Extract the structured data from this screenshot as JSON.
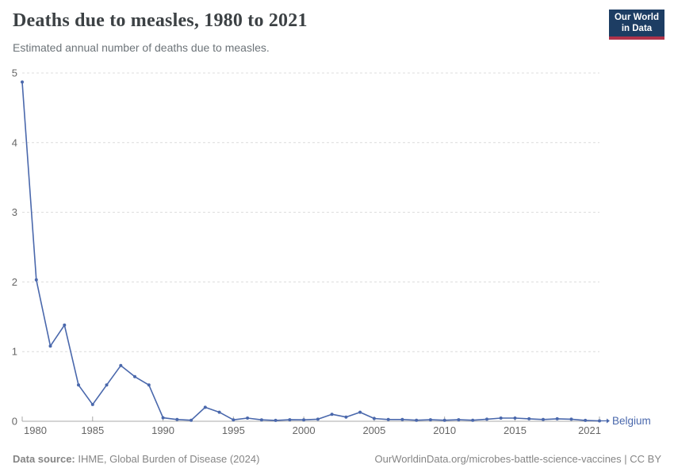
{
  "header": {
    "title": "Deaths due to measles, 1980 to 2021",
    "subtitle": "Estimated annual number of deaths due to measles.",
    "logo": {
      "line1": "Our World",
      "line2": "in Data"
    }
  },
  "chart_data": {
    "type": "line",
    "title": "Deaths due to measles, 1980 to 2021",
    "subtitle": "Estimated annual number of deaths due to measles.",
    "x": [
      1980,
      1981,
      1982,
      1983,
      1984,
      1985,
      1986,
      1987,
      1988,
      1989,
      1990,
      1991,
      1992,
      1993,
      1994,
      1995,
      1996,
      1997,
      1998,
      1999,
      2000,
      2001,
      2002,
      2003,
      2004,
      2005,
      2006,
      2007,
      2008,
      2009,
      2010,
      2011,
      2012,
      2013,
      2014,
      2015,
      2016,
      2017,
      2018,
      2019,
      2020,
      2021
    ],
    "series": [
      {
        "name": "Belgium",
        "values": [
          4.87,
          2.03,
          1.08,
          1.38,
          0.52,
          0.24,
          0.52,
          0.8,
          0.64,
          0.52,
          0.05,
          0.025,
          0.015,
          0.2,
          0.13,
          0.02,
          0.045,
          0.02,
          0.012,
          0.022,
          0.02,
          0.03,
          0.1,
          0.06,
          0.13,
          0.04,
          0.025,
          0.025,
          0.015,
          0.022,
          0.015,
          0.022,
          0.015,
          0.03,
          0.045,
          0.045,
          0.035,
          0.025,
          0.035,
          0.03,
          0.012,
          0.006
        ]
      }
    ],
    "xlabel": "",
    "ylabel": "",
    "ylim": [
      0,
      5
    ],
    "yticks": [
      0,
      1,
      2,
      3,
      4,
      5
    ],
    "xticks": [
      1980,
      1985,
      1990,
      1995,
      2000,
      2005,
      2010,
      2015,
      2021
    ],
    "grid": "horizontal-dashed",
    "legend": "end-of-line-label",
    "end_label": "Belgium"
  },
  "colors": {
    "line": "#4a68ac",
    "grid": "#dcdcdc",
    "axis": "#a8a8a8",
    "tick_label": "#666666",
    "end_label": "#4a68ac",
    "title": "#3c4144",
    "subtitle": "#6d7479",
    "footer": "#858585",
    "logo_bg": "#1d3d63",
    "logo_red": "#b0334a"
  },
  "footer": {
    "source_label": "Data source:",
    "source_text": " IHME, Global Burden of Disease (2024)",
    "right_text": "OurWorldinData.org/microbes-battle-science-vaccines | CC BY"
  }
}
